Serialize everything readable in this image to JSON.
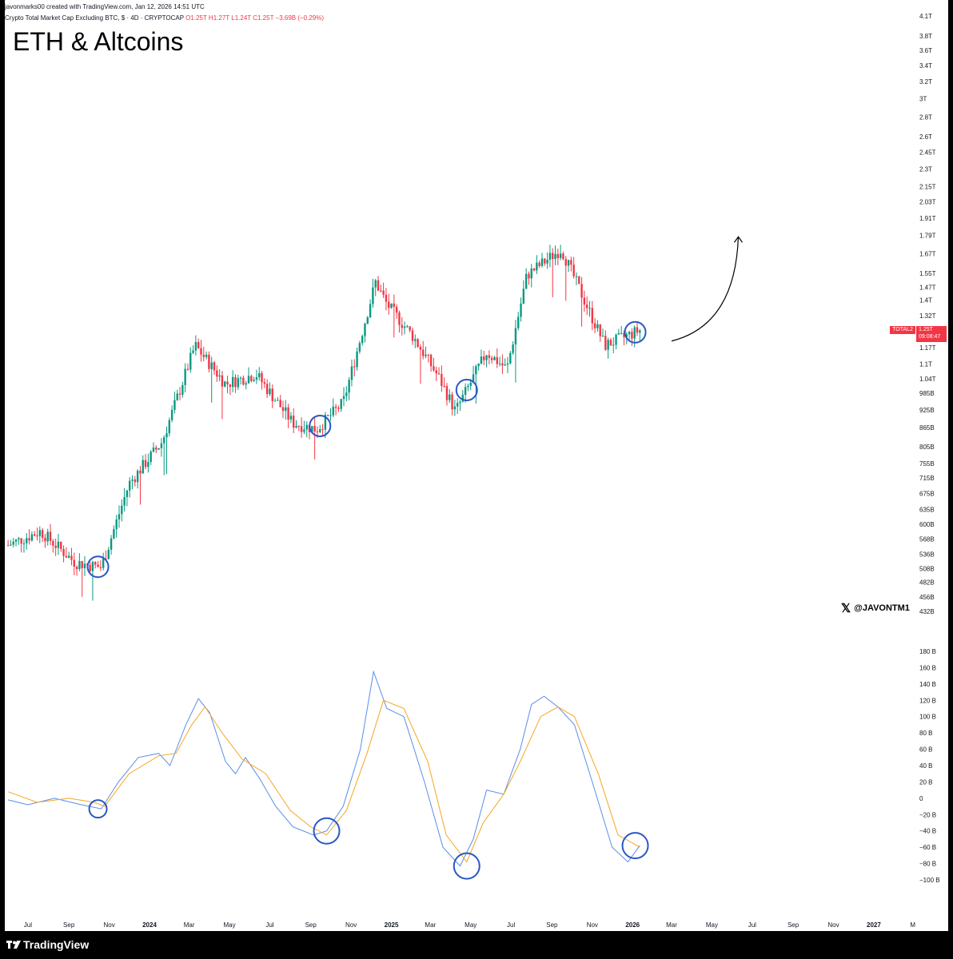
{
  "header": {
    "meta": "javonmarks00 created with TradingView.com, Jan 12, 2026 14:51 UTC",
    "symbol_prefix": "Crypto Total Market Cap Excluding BTC, $ · 4D · CRYPTOCAP",
    "ohlc": "O1.25T  H1.27T  L1.24T  C1.25T  −3.69B (−0.29%)"
  },
  "title": "ETH & Altcoins",
  "handle": "@JAVONTM1",
  "handle_icon": "x-logo-icon",
  "price_tag": {
    "symbol": "TOTAL2",
    "price": "1.25T",
    "countdown": "09:08:47"
  },
  "footer": {
    "brand": "TradingView",
    "logo": "tradingview-logo-icon"
  },
  "colors": {
    "up": "#089981",
    "down": "#f23645",
    "fast_line": "#5b8de8",
    "slow_line": "#f5a623",
    "circle": "#2a56c6"
  },
  "chart_data": [
    {
      "type": "candlestick",
      "scale": "log",
      "ylim": [
        432000000000,
        4100000000000
      ],
      "y_ticks": [
        "4.1T",
        "3.8T",
        "3.6T",
        "3.4T",
        "3.2T",
        "3T",
        "2.8T",
        "2.6T",
        "2.45T",
        "2.3T",
        "2.15T",
        "2.03T",
        "1.91T",
        "1.79T",
        "1.67T",
        "1.55T",
        "1.47T",
        "1.4T",
        "1.32T",
        "1.25T",
        "1.17T",
        "1.1T",
        "1.04T",
        "985B",
        "925B",
        "865B",
        "805B",
        "755B",
        "715B",
        "675B",
        "635B",
        "600B",
        "568B",
        "536B",
        "508B",
        "482B",
        "456B",
        "432B"
      ],
      "anchors": [
        {
          "x": "2023-06-01",
          "y": 555000000000
        },
        {
          "x": "2023-07-20",
          "y": 585000000000
        },
        {
          "x": "2023-09-10",
          "y": 520000000000
        },
        {
          "x": "2023-10-20",
          "y": 510000000000
        },
        {
          "x": "2023-12-01",
          "y": 700000000000
        },
        {
          "x": "2024-01-20",
          "y": 820000000000
        },
        {
          "x": "2024-03-10",
          "y": 1180000000000
        },
        {
          "x": "2024-04-25",
          "y": 1020000000000
        },
        {
          "x": "2024-06-10",
          "y": 1060000000000
        },
        {
          "x": "2024-08-05",
          "y": 880000000000
        },
        {
          "x": "2024-09-10",
          "y": 860000000000
        },
        {
          "x": "2024-10-20",
          "y": 950000000000
        },
        {
          "x": "2024-12-08",
          "y": 1500000000000
        },
        {
          "x": "2024-12-25",
          "y": 1380000000000
        },
        {
          "x": "2025-02-03",
          "y": 1220000000000
        },
        {
          "x": "2025-03-15",
          "y": 1040000000000
        },
        {
          "x": "2025-04-08",
          "y": 920000000000
        },
        {
          "x": "2025-05-25",
          "y": 1150000000000
        },
        {
          "x": "2025-06-25",
          "y": 1080000000000
        },
        {
          "x": "2025-07-25",
          "y": 1540000000000
        },
        {
          "x": "2025-09-15",
          "y": 1700000000000
        },
        {
          "x": "2025-10-10",
          "y": 1480000000000
        },
        {
          "x": "2025-11-20",
          "y": 1180000000000
        },
        {
          "x": "2026-01-12",
          "y": 1250000000000
        }
      ],
      "circles_at": [
        "2023-10-15",
        "2024-09-15",
        "2025-04-25",
        "2026-01-05"
      ],
      "projection_arrow": {
        "from": {
          "x": "2026-03-01",
          "y": 1200000000000
        },
        "to": {
          "x": "2026-06-10",
          "y": 1780000000000
        }
      }
    },
    {
      "type": "line",
      "ylim": [
        -100000000000,
        180000000000
      ],
      "y_ticks": [
        "180 B",
        "160 B",
        "140 B",
        "120 B",
        "100 B",
        "80 B",
        "60 B",
        "40 B",
        "20 B",
        "0",
        "−20 B",
        "−40 B",
        "−60 B",
        "−80 B",
        "−100 B"
      ],
      "series": [
        {
          "values_at": [
            {
              "x": "2023-06-01",
              "y": -2
            },
            {
              "x": "2023-07-01",
              "y": -8
            },
            {
              "x": "2023-08-10",
              "y": 0
            },
            {
              "x": "2023-09-20",
              "y": -8
            },
            {
              "x": "2023-10-20",
              "y": -13
            },
            {
              "x": "2023-11-15",
              "y": 20
            },
            {
              "x": "2023-12-15",
              "y": 50
            },
            {
              "x": "2024-01-15",
              "y": 55
            },
            {
              "x": "2024-02-01",
              "y": 40
            },
            {
              "x": "2024-02-25",
              "y": 90
            },
            {
              "x": "2024-03-15",
              "y": 122
            },
            {
              "x": "2024-04-01",
              "y": 105
            },
            {
              "x": "2024-04-25",
              "y": 45
            },
            {
              "x": "2024-05-10",
              "y": 30
            },
            {
              "x": "2024-05-25",
              "y": 50
            },
            {
              "x": "2024-06-15",
              "y": 25
            },
            {
              "x": "2024-07-10",
              "y": -10
            },
            {
              "x": "2024-08-05",
              "y": -35
            },
            {
              "x": "2024-09-05",
              "y": -45
            },
            {
              "x": "2024-09-25",
              "y": -40
            },
            {
              "x": "2024-10-20",
              "y": -10
            },
            {
              "x": "2024-11-15",
              "y": 60
            },
            {
              "x": "2024-12-05",
              "y": 155
            },
            {
              "x": "2024-12-25",
              "y": 110
            },
            {
              "x": "2025-01-20",
              "y": 100
            },
            {
              "x": "2025-02-20",
              "y": 20
            },
            {
              "x": "2025-03-20",
              "y": -60
            },
            {
              "x": "2025-04-15",
              "y": -83
            },
            {
              "x": "2025-05-05",
              "y": -50
            },
            {
              "x": "2025-05-25",
              "y": 10
            },
            {
              "x": "2025-06-20",
              "y": 5
            },
            {
              "x": "2025-07-15",
              "y": 60
            },
            {
              "x": "2025-08-01",
              "y": 115
            },
            {
              "x": "2025-08-20",
              "y": 125
            },
            {
              "x": "2025-09-10",
              "y": 112
            },
            {
              "x": "2025-10-05",
              "y": 90
            },
            {
              "x": "2025-11-01",
              "y": 20
            },
            {
              "x": "2025-12-01",
              "y": -60
            },
            {
              "x": "2025-12-25",
              "y": -78
            },
            {
              "x": "2026-01-12",
              "y": -58
            }
          ]
        },
        {
          "values_at": [
            {
              "x": "2023-06-01",
              "y": 8
            },
            {
              "x": "2023-07-15",
              "y": -5
            },
            {
              "x": "2023-09-01",
              "y": 0
            },
            {
              "x": "2023-10-10",
              "y": -5
            },
            {
              "x": "2023-10-25",
              "y": -10
            },
            {
              "x": "2023-12-01",
              "y": 30
            },
            {
              "x": "2024-01-15",
              "y": 52
            },
            {
              "x": "2024-02-10",
              "y": 55
            },
            {
              "x": "2024-03-05",
              "y": 90
            },
            {
              "x": "2024-03-25",
              "y": 112
            },
            {
              "x": "2024-04-20",
              "y": 80
            },
            {
              "x": "2024-05-20",
              "y": 48
            },
            {
              "x": "2024-06-25",
              "y": 30
            },
            {
              "x": "2024-08-01",
              "y": -15
            },
            {
              "x": "2024-09-01",
              "y": -35
            },
            {
              "x": "2024-09-25",
              "y": -45
            },
            {
              "x": "2024-10-25",
              "y": -15
            },
            {
              "x": "2024-11-25",
              "y": 55
            },
            {
              "x": "2024-12-20",
              "y": 120
            },
            {
              "x": "2025-01-20",
              "y": 110
            },
            {
              "x": "2025-02-25",
              "y": 45
            },
            {
              "x": "2025-03-25",
              "y": -45
            },
            {
              "x": "2025-04-25",
              "y": -78
            },
            {
              "x": "2025-05-20",
              "y": -30
            },
            {
              "x": "2025-06-20",
              "y": 5
            },
            {
              "x": "2025-07-15",
              "y": 45
            },
            {
              "x": "2025-08-15",
              "y": 100
            },
            {
              "x": "2025-09-10",
              "y": 112
            },
            {
              "x": "2025-10-05",
              "y": 100
            },
            {
              "x": "2025-11-10",
              "y": 30
            },
            {
              "x": "2025-12-10",
              "y": -45
            },
            {
              "x": "2026-01-12",
              "y": -60
            }
          ]
        }
      ],
      "circles_at": [
        "2023-10-15",
        "2024-09-25",
        "2025-04-25",
        "2026-01-05"
      ]
    }
  ],
  "x_axis": {
    "labels": [
      "Jul",
      "Sep",
      "Nov",
      "2024",
      "Mar",
      "May",
      "Jul",
      "Sep",
      "Nov",
      "2025",
      "Mar",
      "May",
      "Jul",
      "Sep",
      "Nov",
      "2026",
      "Mar",
      "May",
      "Jul",
      "Sep",
      "Nov",
      "2027",
      "M"
    ],
    "bold_labels": [
      "2024",
      "2025",
      "2026",
      "2027"
    ]
  }
}
